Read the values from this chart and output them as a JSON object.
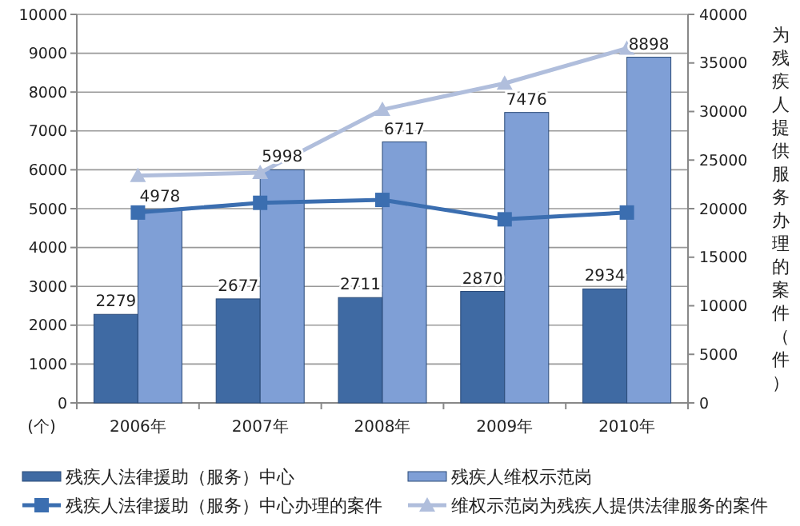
{
  "chart_data": {
    "type": "bar",
    "ylabel": "(个)",
    "y2label": "为残疾人提供服务办理的案件（件）",
    "categories": [
      "2006年",
      "2007年",
      "2008年",
      "2009年",
      "2010年"
    ],
    "series": [
      {
        "name": "残疾人法律援助（服务）中心",
        "color": "#3f6aa3",
        "values": [
          2279,
          2677,
          2711,
          2870,
          2934
        ],
        "value_labels": [
          "2279",
          "2677",
          "2711",
          "2870",
          "2934"
        ]
      },
      {
        "name": "残疾人维权示范岗",
        "color": "#7f9fd6",
        "values": [
          4978,
          5998,
          6717,
          7476,
          8898
        ],
        "value_labels": [
          "4978",
          "5998",
          "6717",
          "7476",
          "8898"
        ]
      },
      {
        "name": "残疾人法律援助（服务）中心办理的案件",
        "type": "line",
        "axis": "y2",
        "marker": "square",
        "color": "#3b6eb0",
        "values": [
          19600,
          20600,
          20900,
          18900,
          19600
        ]
      },
      {
        "name": "维权示范岗为残疾人提供法律服务的案件",
        "type": "line",
        "axis": "y2",
        "marker": "triangle",
        "color": "#b0bedc",
        "values": [
          23400,
          23700,
          30200,
          32900,
          36500
        ]
      }
    ],
    "ylim": [
      0,
      10000
    ],
    "yticks": [
      0,
      1000,
      2000,
      3000,
      4000,
      5000,
      6000,
      7000,
      8000,
      9000,
      10000
    ],
    "y2lim": [
      0,
      40000
    ],
    "y2ticks": [
      0,
      5000,
      10000,
      15000,
      20000,
      25000,
      30000,
      35000,
      40000
    ],
    "grid": "y",
    "legend": "bottom"
  }
}
